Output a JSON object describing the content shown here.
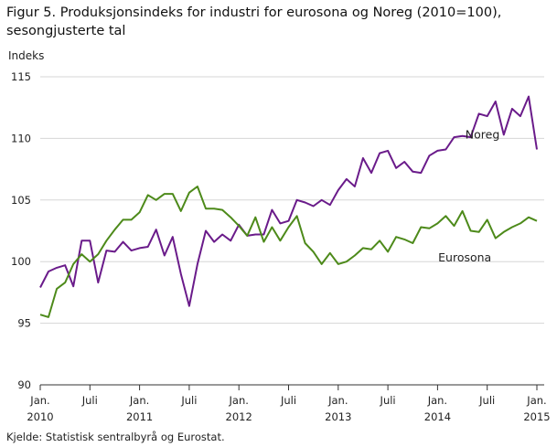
{
  "chart_data": {
    "type": "line",
    "title": "Figur 5. Produksjonsindeks for industri for eurosona og Noreg (2010=100), sesongjusterte tal",
    "ylabel": "Indeks",
    "xlabel": "",
    "ylim": [
      90,
      115
    ],
    "yticks": [
      "90",
      "95",
      "100",
      "105",
      "110",
      "115"
    ],
    "grid": "horizontal",
    "legend": "inline labels",
    "x_start": "2010-01",
    "x_ticks": [
      {
        "month_index": 0,
        "line1": "Jan.",
        "line2": "2010"
      },
      {
        "month_index": 6,
        "line1": "Juli",
        "line2": ""
      },
      {
        "month_index": 12,
        "line1": "Jan.",
        "line2": "2011"
      },
      {
        "month_index": 18,
        "line1": "Juli",
        "line2": ""
      },
      {
        "month_index": 24,
        "line1": "Jan.",
        "line2": "2012"
      },
      {
        "month_index": 30,
        "line1": "Juli",
        "line2": ""
      },
      {
        "month_index": 36,
        "line1": "Jan.",
        "line2": "2013"
      },
      {
        "month_index": 42,
        "line1": "Juli",
        "line2": ""
      },
      {
        "month_index": 48,
        "line1": "Jan.",
        "line2": "2014"
      },
      {
        "month_index": 54,
        "line1": "Juli",
        "line2": ""
      },
      {
        "month_index": 60,
        "line1": "Jan.",
        "line2": "2015"
      }
    ],
    "series": [
      {
        "name": "Noreg",
        "color": "#6a1b8a",
        "values": [
          97.9,
          99.2,
          99.5,
          99.7,
          98.0,
          101.7,
          101.7,
          98.3,
          100.9,
          100.8,
          101.6,
          100.9,
          101.1,
          101.2,
          102.6,
          100.5,
          102.0,
          99.0,
          96.4,
          99.8,
          102.5,
          101.6,
          102.2,
          101.7,
          103.0,
          102.1,
          102.2,
          102.2,
          104.2,
          103.1,
          103.3,
          105.0,
          104.8,
          104.5,
          105.0,
          104.6,
          105.8,
          106.7,
          106.1,
          108.4,
          107.2,
          108.8,
          109.0,
          107.6,
          108.1,
          107.3,
          107.2,
          108.6,
          109.0,
          109.1,
          110.1,
          110.2,
          110.1,
          112.0,
          111.8,
          113.0,
          110.3,
          112.4,
          111.8,
          113.4,
          109.1
        ]
      },
      {
        "name": "Eurosona",
        "color": "#4d8a1a",
        "values": [
          95.7,
          95.5,
          97.8,
          98.3,
          99.8,
          100.6,
          100.0,
          100.6,
          101.7,
          102.6,
          103.4,
          103.4,
          104.0,
          105.4,
          105.0,
          105.5,
          105.5,
          104.1,
          105.6,
          106.1,
          104.3,
          104.3,
          104.2,
          103.6,
          102.9,
          102.1,
          103.6,
          101.6,
          102.8,
          101.7,
          102.8,
          103.7,
          101.5,
          100.8,
          99.8,
          100.7,
          99.8,
          100.0,
          100.5,
          101.1,
          101.0,
          101.7,
          100.8,
          102.0,
          101.8,
          101.5,
          102.8,
          102.7,
          103.1,
          103.7,
          102.9,
          104.1,
          102.5,
          102.4,
          103.4,
          101.9,
          102.4,
          102.8,
          103.1,
          103.6,
          103.3
        ]
      }
    ],
    "series_labels": [
      {
        "text": "Noreg",
        "anchor_month": 55.5,
        "anchor_value": 110.0
      },
      {
        "text": "Eurosona",
        "anchor_month": 54.5,
        "anchor_value": 100.0
      }
    ],
    "source": "Kjelde: Statistisk sentralbyrå og Eurostat."
  }
}
